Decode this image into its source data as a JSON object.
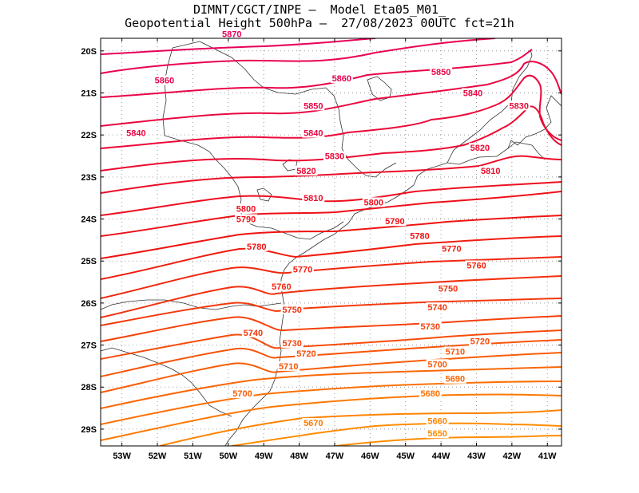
{
  "title_line1": "DIMNT/CGCT/INPE –  Model Eta05_M01_",
  "title_line2": "Geopotential Height 500hPa –  27/08/2023 00UTC fct=21h",
  "chart_data": {
    "type": "contour",
    "variable": "Geopotential Height 500hPa",
    "lon_range": [
      -53.6,
      -40.6
    ],
    "lat_range": [
      -29.4,
      -19.7
    ],
    "x_ticks": [
      "53W",
      "52W",
      "51W",
      "50W",
      "49W",
      "48W",
      "47W",
      "46W",
      "45W",
      "44W",
      "43W",
      "42W",
      "41W"
    ],
    "y_ticks": [
      "20S",
      "21S",
      "22S",
      "23S",
      "24S",
      "25S",
      "26S",
      "27S",
      "28S",
      "29S"
    ],
    "grid": "dotted",
    "colors": {
      "high": "#e8005a",
      "mid": "#ee1111",
      "low": "#ff8c00"
    },
    "contour_labels": [
      {
        "text": "5870",
        "lon": -49.9,
        "lat": -19.6
      },
      {
        "text": "5860",
        "lon": -51.8,
        "lat": -20.7
      },
      {
        "text": "5860",
        "lon": -46.8,
        "lat": -20.65
      },
      {
        "text": "5850",
        "lon": -44.0,
        "lat": -20.5
      },
      {
        "text": "5850",
        "lon": -47.6,
        "lat": -21.3
      },
      {
        "text": "5840",
        "lon": -43.1,
        "lat": -21.0
      },
      {
        "text": "5830",
        "lon": -41.8,
        "lat": -21.3
      },
      {
        "text": "5840",
        "lon": -52.6,
        "lat": -21.95
      },
      {
        "text": "5840",
        "lon": -47.6,
        "lat": -21.95
      },
      {
        "text": "5830",
        "lon": -47.0,
        "lat": -22.5
      },
      {
        "text": "5820",
        "lon": -42.9,
        "lat": -22.3
      },
      {
        "text": "5820",
        "lon": -47.8,
        "lat": -22.85
      },
      {
        "text": "5810",
        "lon": -42.6,
        "lat": -22.85
      },
      {
        "text": "5810",
        "lon": -47.6,
        "lat": -23.5
      },
      {
        "text": "5800",
        "lon": -49.5,
        "lat": -23.75
      },
      {
        "text": "5800",
        "lon": -45.9,
        "lat": -23.6
      },
      {
        "text": "5790",
        "lon": -49.5,
        "lat": -24.0
      },
      {
        "text": "5790",
        "lon": -45.3,
        "lat": -24.05
      },
      {
        "text": "5780",
        "lon": -49.2,
        "lat": -24.65
      },
      {
        "text": "5780",
        "lon": -44.6,
        "lat": -24.4
      },
      {
        "text": "5770",
        "lon": -47.9,
        "lat": -25.2
      },
      {
        "text": "5770",
        "lon": -43.7,
        "lat": -24.7
      },
      {
        "text": "5760",
        "lon": -48.5,
        "lat": -25.6
      },
      {
        "text": "5760",
        "lon": -43.0,
        "lat": -25.1
      },
      {
        "text": "5750",
        "lon": -48.2,
        "lat": -26.15
      },
      {
        "text": "5750",
        "lon": -43.8,
        "lat": -25.65
      },
      {
        "text": "5740",
        "lon": -44.1,
        "lat": -26.1
      },
      {
        "text": "5740",
        "lon": -49.3,
        "lat": -26.7
      },
      {
        "text": "5730",
        "lon": -44.3,
        "lat": -26.55
      },
      {
        "text": "5730",
        "lon": -48.2,
        "lat": -26.95
      },
      {
        "text": "5720",
        "lon": -42.9,
        "lat": -26.9
      },
      {
        "text": "5720",
        "lon": -47.8,
        "lat": -27.2
      },
      {
        "text": "5710",
        "lon": -43.6,
        "lat": -27.15
      },
      {
        "text": "5710",
        "lon": -48.3,
        "lat": -27.5
      },
      {
        "text": "5700",
        "lon": -44.1,
        "lat": -27.45
      },
      {
        "text": "5690",
        "lon": -43.6,
        "lat": -27.8
      },
      {
        "text": "5700",
        "lon": -49.6,
        "lat": -28.15
      },
      {
        "text": "5680",
        "lon": -44.3,
        "lat": -28.15
      },
      {
        "text": "5670",
        "lon": -47.6,
        "lat": -28.85
      },
      {
        "text": "5660",
        "lon": -44.1,
        "lat": -28.8
      },
      {
        "text": "5650",
        "lon": -44.1,
        "lat": -29.1
      }
    ]
  }
}
